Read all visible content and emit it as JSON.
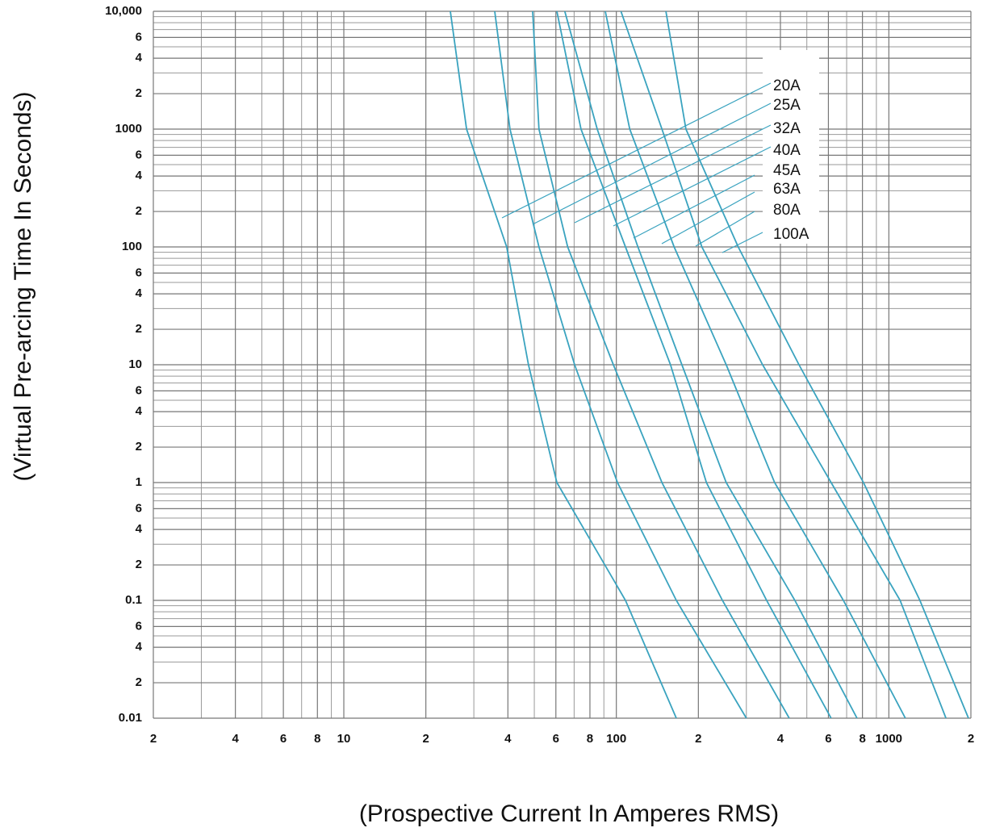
{
  "chart_data": {
    "type": "line",
    "x_label": "(Prospective Current In Amperes RMS)",
    "y_label": "(Virtual Pre-arcing Time In Seconds)",
    "log_x": true,
    "log_y": true,
    "grid": true,
    "color": "#3aa3bf",
    "xlim": [
      2,
      2000
    ],
    "ylim": [
      0.01,
      10000
    ],
    "xticks": [
      2,
      4,
      6,
      8,
      10,
      {
        "value": 20,
        "label": "2"
      },
      {
        "value": 40,
        "label": "4"
      },
      {
        "value": 60,
        "label": "6"
      },
      {
        "value": 80,
        "label": "8"
      },
      100,
      {
        "value": 200,
        "label": "2"
      },
      {
        "value": 400,
        "label": "4"
      },
      {
        "value": 600,
        "label": "6"
      },
      {
        "value": 800,
        "label": "8"
      },
      1000,
      {
        "value": 2000,
        "label": "2"
      }
    ],
    "yticks": [
      {
        "value": 10000,
        "label": "10,000"
      },
      {
        "value": 6000,
        "label": "6"
      },
      {
        "value": 4000,
        "label": "4"
      },
      {
        "value": 2000,
        "label": "2"
      },
      1000,
      {
        "value": 600,
        "label": "6"
      },
      {
        "value": 400,
        "label": "4"
      },
      {
        "value": 200,
        "label": "2"
      },
      100,
      {
        "value": 60,
        "label": "6"
      },
      {
        "value": 40,
        "label": "4"
      },
      {
        "value": 20,
        "label": "2"
      },
      10,
      6,
      4,
      2,
      1,
      {
        "value": 0.6,
        "label": "6"
      },
      {
        "value": 0.4,
        "label": "4"
      },
      {
        "value": 0.2,
        "label": "2"
      },
      0.1,
      {
        "value": 0.06,
        "label": "6"
      },
      {
        "value": 0.04,
        "label": "4"
      },
      {
        "value": 0.02,
        "label": "2"
      },
      0.01
    ],
    "xgrid": [
      3,
      5,
      7,
      9,
      30,
      50,
      70,
      90,
      300,
      500,
      700,
      900
    ],
    "ygrid": [
      0.03,
      0.05,
      0.07,
      0.08,
      0.09,
      0.3,
      0.5,
      0.7,
      0.8,
      0.9,
      3,
      5,
      7,
      8,
      9,
      30,
      50,
      70,
      80,
      90,
      300,
      500,
      700,
      800,
      900,
      3000,
      5000,
      7000,
      8000,
      9000
    ],
    "series": [
      {
        "name": "20A",
        "x": [
          24.6,
          28.2,
          39.6,
          47.6,
          60.5,
          108,
          166
        ],
        "values": [
          10000,
          1000,
          100,
          10,
          1,
          0.1,
          0.01
        ]
      },
      {
        "name": "25A",
        "x": [
          35.8,
          40.7,
          52.0,
          70.3,
          101,
          166,
          300
        ],
        "values": [
          10000,
          1000,
          100,
          10,
          1,
          0.1,
          0.01
        ]
      },
      {
        "name": "32A",
        "x": [
          49.3,
          52.0,
          66.3,
          97.5,
          147,
          245,
          431
        ],
        "values": [
          10000,
          1000,
          100,
          10,
          1,
          0.1,
          0.01
        ]
      },
      {
        "name": "40A",
        "x": [
          60.5,
          74.2,
          108,
          158,
          214,
          356,
          614
        ],
        "values": [
          10000,
          1000,
          100,
          10,
          1,
          0.1,
          0.01
        ]
      },
      {
        "name": "45A",
        "x": [
          64.7,
          85.1,
          120,
          174,
          253,
          452,
          764
        ],
        "values": [
          10000,
          1000,
          100,
          10,
          1,
          0.1,
          0.01
        ]
      },
      {
        "name": "63A",
        "x": [
          91.1,
          112,
          163,
          253,
          381,
          681,
          1150
        ],
        "values": [
          10000,
          1000,
          100,
          10,
          1,
          0.1,
          0.01
        ]
      },
      {
        "name": "80A",
        "x": [
          104,
          147,
          206,
          344,
          614,
          1100,
          1620
        ],
        "values": [
          10000,
          1000,
          100,
          10,
          1,
          0.1,
          0.01
        ]
      },
      {
        "name": "100A",
        "x": [
          152,
          180,
          280,
          468,
          807,
          1300,
          1960
        ],
        "values": [
          10000,
          1000,
          100,
          10,
          1,
          0.1,
          0.01
        ]
      }
    ]
  }
}
